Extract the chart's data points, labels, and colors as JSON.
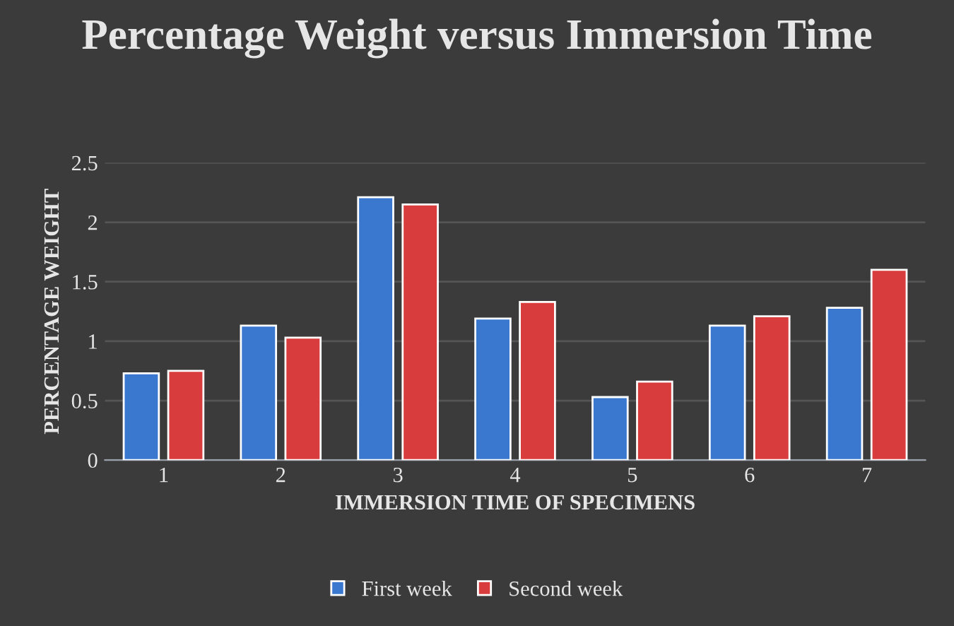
{
  "chart_data": {
    "type": "bar",
    "title": "Percentage Weight versus Immersion Time",
    "xlabel": "IMMERSION TIME OF SPECIMENS",
    "ylabel": "PERCENTAGE WEIGHT",
    "categories": [
      "1",
      "2",
      "3",
      "4",
      "5",
      "6",
      "7"
    ],
    "series": [
      {
        "name": "First week",
        "color": "#3a78d0",
        "values": [
          0.73,
          1.13,
          2.21,
          1.19,
          0.53,
          1.13,
          1.28
        ]
      },
      {
        "name": "Second week",
        "color": "#d83c3c",
        "values": [
          0.75,
          1.03,
          2.15,
          1.33,
          0.66,
          1.21,
          1.6
        ]
      }
    ],
    "ylim": [
      0,
      2.5
    ],
    "yticks": [
      0,
      {
        "value": 0.5,
        "label": "0.5"
      },
      1,
      {
        "value": 1.5,
        "label": "1.5"
      },
      2,
      {
        "value": 2.5,
        "label": "2.5"
      }
    ],
    "grid": "y",
    "legend": "bottom"
  }
}
